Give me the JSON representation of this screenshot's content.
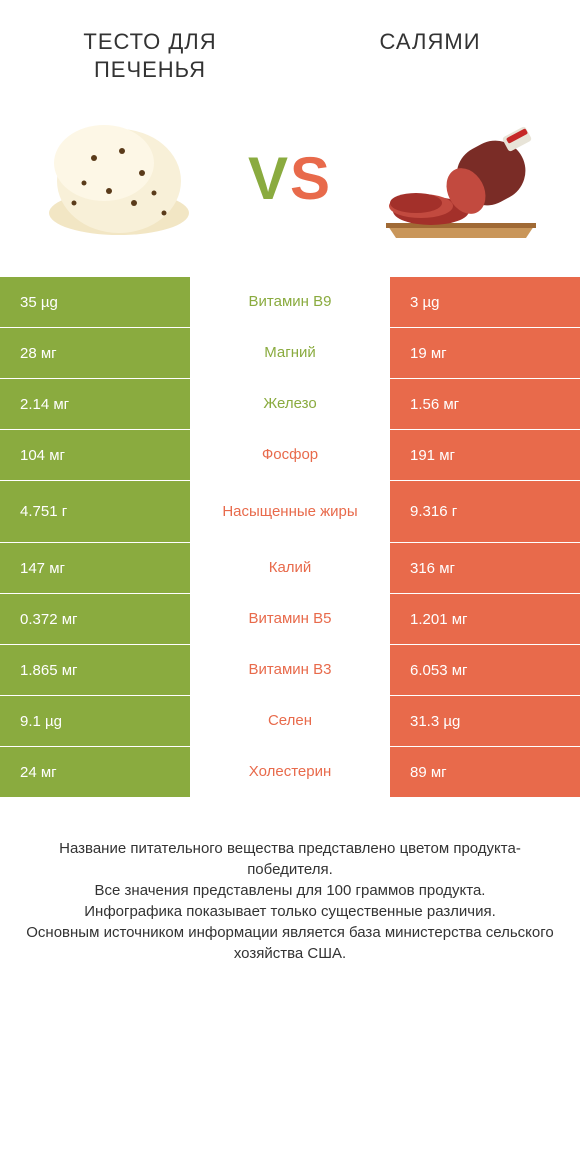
{
  "header": {
    "left_title": "ТЕСТО ДЛЯ ПЕЧЕНЬЯ",
    "right_title": "САЛЯМИ",
    "vs_v": "V",
    "vs_s": "S"
  },
  "colors": {
    "green": "#8aab3f",
    "orange": "#e86a4b",
    "green_text": "#8aab3f",
    "orange_text": "#e86a4b",
    "white": "#ffffff"
  },
  "rows": [
    {
      "left": "35 µg",
      "label": "Витамин B9",
      "right": "3 µg",
      "winner": "left",
      "tall": false
    },
    {
      "left": "28 мг",
      "label": "Магний",
      "right": "19 мг",
      "winner": "left",
      "tall": false
    },
    {
      "left": "2.14 мг",
      "label": "Железо",
      "right": "1.56 мг",
      "winner": "left",
      "tall": false
    },
    {
      "left": "104 мг",
      "label": "Фосфор",
      "right": "191 мг",
      "winner": "right",
      "tall": false
    },
    {
      "left": "4.751 г",
      "label": "Насыщенные жиры",
      "right": "9.316 г",
      "winner": "right",
      "tall": true
    },
    {
      "left": "147 мг",
      "label": "Калий",
      "right": "316 мг",
      "winner": "right",
      "tall": false
    },
    {
      "left": "0.372 мг",
      "label": "Витамин B5",
      "right": "1.201 мг",
      "winner": "right",
      "tall": false
    },
    {
      "left": "1.865 мг",
      "label": "Витамин B3",
      "right": "6.053 мг",
      "winner": "right",
      "tall": false
    },
    {
      "left": "9.1 µg",
      "label": "Селен",
      "right": "31.3 µg",
      "winner": "right",
      "tall": false
    },
    {
      "left": "24 мг",
      "label": "Холестерин",
      "right": "89 мг",
      "winner": "right",
      "tall": false
    }
  ],
  "footer": {
    "line1": "Название питательного вещества представлено цветом продукта-победителя.",
    "line2": "Все значения представлены для 100 граммов продукта.",
    "line3": "Инфографика показывает только существенные различия.",
    "line4": "Основным источником информации является база министерства сельского хозяйства США."
  }
}
